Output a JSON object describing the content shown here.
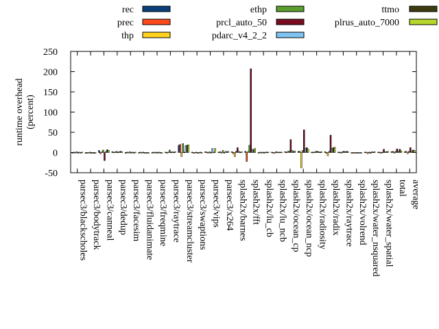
{
  "chart_data": {
    "type": "bar",
    "title": "",
    "xlabel": "",
    "ylabel_lines": [
      "runtime overhead",
      "(percent)"
    ],
    "ylim": [
      -50,
      250
    ],
    "yticks": [
      "-50",
      "0",
      "50",
      "100",
      "150",
      "200",
      "250"
    ],
    "grid": false,
    "legend_position": "top",
    "categories": [
      "parsec3/blackscholes",
      "parsec3/bodytrack",
      "parsec3/canneal",
      "parsec3/dedup",
      "parsec3/facesim",
      "parsec3/fluidanimate",
      "parsec3/freqmine",
      "parsec3/raytrace",
      "parsec3/streamcluster",
      "parsec3/swaptions",
      "parsec3/vips",
      "parsec3/x264",
      "splash2x/barnes",
      "splash2x/fft",
      "splash2x/lu_cb",
      "splash2x/lu_ncb",
      "splash2x/ocean_cp",
      "splash2x/ocean_ncp",
      "splash2x/radiosity",
      "splash2x/radix",
      "splash2x/raytrace",
      "splash2x/volrend",
      "splash2x/water_nsquared",
      "splash2x/water_spatial",
      "total",
      "average"
    ],
    "series": [
      {
        "name": "rec",
        "color": "#0b3f7a",
        "values": [
          -1,
          -2,
          5,
          2,
          -2,
          -1,
          -1,
          1,
          18,
          1,
          2,
          1,
          2,
          3,
          -1,
          1,
          2,
          3,
          1,
          2,
          1,
          0,
          1,
          1,
          2,
          2
        ]
      },
      {
        "name": "prec",
        "color": "#ff4a1c",
        "values": [
          1,
          -1,
          -3,
          1,
          1,
          1,
          1,
          -1,
          20,
          0,
          1,
          2,
          -3,
          -22,
          1,
          0,
          1,
          3,
          1,
          -2,
          1,
          0,
          1,
          1,
          3,
          3
        ]
      },
      {
        "name": "thp",
        "color": "#ffd21f",
        "values": [
          0,
          -1,
          2,
          1,
          0,
          -1,
          0,
          1,
          -10,
          0,
          0,
          0,
          -10,
          3,
          -1,
          -1,
          3,
          -38,
          1,
          -8,
          -1,
          -1,
          -3,
          -2,
          -1,
          -3
        ]
      },
      {
        "name": "ethp",
        "color": "#5a9e2e",
        "values": [
          2,
          1,
          6,
          3,
          2,
          1,
          1,
          6,
          22,
          1,
          2,
          5,
          3,
          18,
          1,
          2,
          4,
          5,
          3,
          3,
          2,
          0,
          1,
          1,
          3,
          3
        ]
      },
      {
        "name": "prcl_auto_50",
        "color": "#7a0c20",
        "values": [
          0,
          -2,
          -20,
          1,
          -1,
          -1,
          0,
          1,
          1,
          0,
          -1,
          -1,
          12,
          207,
          -1,
          1,
          32,
          56,
          3,
          43,
          3,
          -1,
          -2,
          8,
          9,
          12
        ]
      },
      {
        "name": "pdarc_v4_2_2",
        "color": "#7fc3f2",
        "values": [
          1,
          -1,
          3,
          2,
          1,
          0,
          1,
          2,
          17,
          0,
          10,
          3,
          3,
          8,
          1,
          1,
          5,
          10,
          2,
          10,
          2,
          0,
          2,
          2,
          4,
          4
        ]
      },
      {
        "name": "ttmo",
        "color": "#3d3b10",
        "values": [
          -1,
          -2,
          7,
          3,
          -1,
          -1,
          -1,
          1,
          18,
          1,
          1,
          2,
          1,
          7,
          1,
          1,
          3,
          12,
          1,
          12,
          3,
          0,
          1,
          2,
          8,
          6
        ]
      },
      {
        "name": "plrus_auto_7000",
        "color": "#b5d62a",
        "values": [
          1,
          -1,
          5,
          2,
          1,
          0,
          0,
          2,
          19,
          0,
          10,
          3,
          2,
          10,
          1,
          1,
          4,
          8,
          2,
          13,
          2,
          0,
          2,
          3,
          4,
          5
        ]
      }
    ]
  }
}
